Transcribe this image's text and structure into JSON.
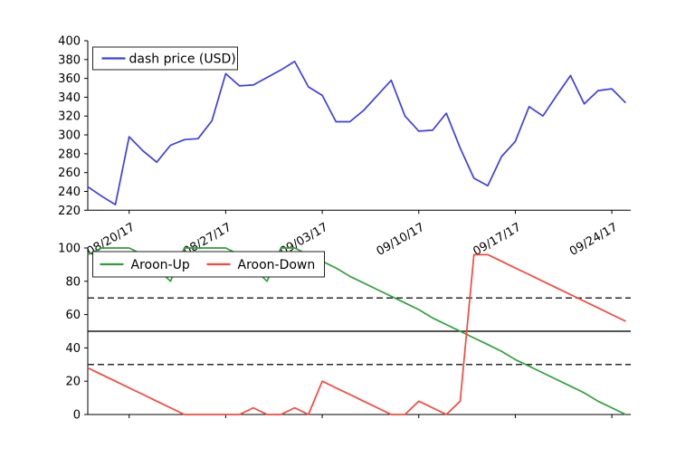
{
  "figure": {
    "background": "#ffffff",
    "description": "Two stacked line charts: dash price (USD) above, Aroon oscillator below",
    "n_points": 40,
    "x_unit": "daily"
  },
  "chart_data": [
    {
      "type": "line",
      "title": "",
      "xlabel": "",
      "ylabel": "",
      "ylim": [
        220,
        400
      ],
      "yticks": [
        220,
        240,
        260,
        280,
        300,
        320,
        340,
        360,
        380,
        400
      ],
      "x_tick_labels": [
        "08/20/17",
        "08/27/17",
        "09/03/17",
        "09/10/17",
        "09/17/17",
        "09/24/17"
      ],
      "x_tick_day_indices": [
        3,
        10,
        17,
        24,
        31,
        38
      ],
      "grid": false,
      "legend_position": "upper left",
      "legend": [
        {
          "label": "dash price (USD)",
          "color": "#3e3ee9"
        }
      ],
      "series": [
        {
          "name": "dash price (USD)",
          "color": "#3e3ee9",
          "values": [
            245,
            235,
            226,
            298,
            283,
            271,
            289,
            295,
            296,
            315,
            365,
            352,
            353,
            361,
            369,
            378,
            351,
            342,
            314,
            314,
            326,
            342,
            358,
            320,
            304,
            305,
            323,
            286,
            254,
            246,
            277,
            293,
            330,
            320,
            342,
            363,
            333,
            347,
            349,
            334
          ]
        }
      ]
    },
    {
      "type": "line",
      "title": "",
      "xlabel": "",
      "ylabel": "",
      "ylim": [
        0,
        100
      ],
      "yticks": [
        0,
        20,
        40,
        60,
        80,
        100
      ],
      "x_tick_labels": [],
      "x_tick_day_indices": [
        3,
        10,
        17,
        24,
        31,
        38
      ],
      "grid": false,
      "legend_position": "upper left",
      "reference_lines": [
        {
          "y": 70,
          "style": "dashed",
          "color": "#2b2b2b"
        },
        {
          "y": 50,
          "style": "solid",
          "color": "#1a1a1a"
        },
        {
          "y": 30,
          "style": "dashed",
          "color": "#2b2b2b"
        }
      ],
      "legend": [
        {
          "label": "Aroon-Up",
          "color": "#30a03c"
        },
        {
          "label": "Aroon-Down",
          "color": "#f8473f"
        }
      ],
      "series": [
        {
          "name": "Aroon-Up",
          "color": "#30a03c",
          "values": [
            96,
            100,
            100,
            100,
            96,
            88,
            80,
            100,
            100,
            100,
            100,
            96,
            88,
            80,
            100,
            100,
            96,
            92,
            88,
            83,
            79,
            75,
            71,
            67,
            63,
            58,
            54,
            50,
            46,
            42,
            38,
            33,
            29,
            25,
            21,
            17,
            13,
            8,
            4,
            0
          ]
        },
        {
          "name": "Aroon-Down",
          "color": "#f8473f",
          "values": [
            28,
            24,
            20,
            16,
            12,
            8,
            4,
            0,
            0,
            0,
            0,
            0,
            4,
            0,
            0,
            4,
            0,
            20,
            16,
            12,
            8,
            4,
            0,
            0,
            8,
            4,
            0,
            8,
            96,
            96,
            92,
            88,
            84,
            80,
            76,
            72,
            68,
            64,
            60,
            56
          ]
        }
      ]
    }
  ]
}
